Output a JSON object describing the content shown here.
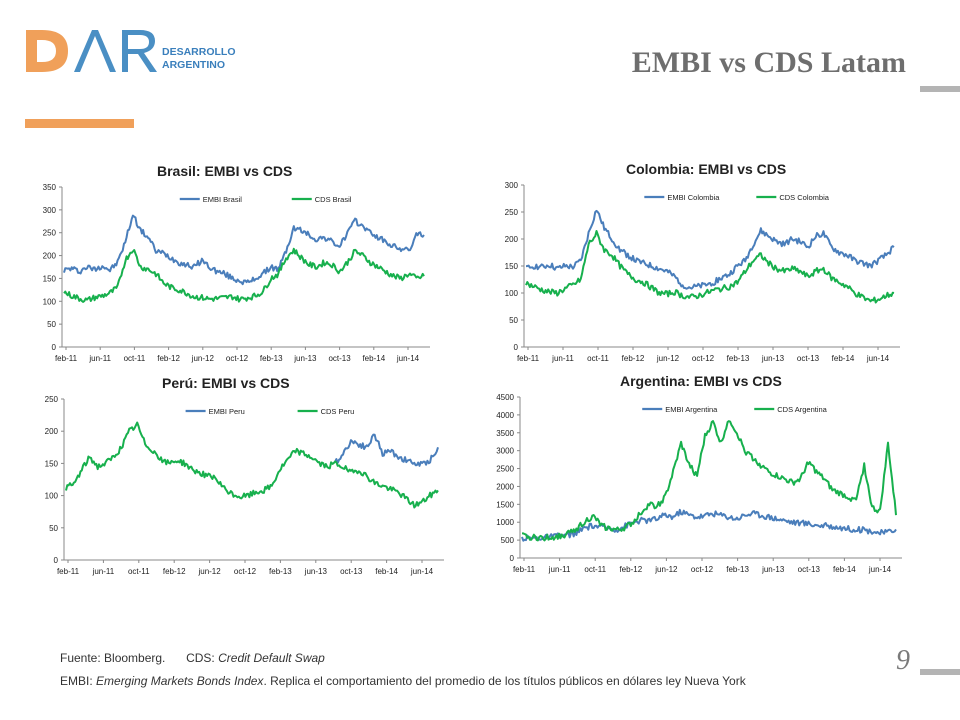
{
  "header": {
    "logo_letters": "DAR",
    "logo_line1": "DESARROLLO",
    "logo_line2": "ARGENTINO",
    "title": "EMBI vs CDS Latam"
  },
  "colors": {
    "embi": "#4a7ebb",
    "cds": "#17b04d",
    "accent": "#f0a05a",
    "title": "#6e6e6e"
  },
  "footer": {
    "source_label": "Fuente: Bloomberg.",
    "cds_label": "CDS: ",
    "cds_def": "Credit Default Swap",
    "embi_label": "EMBI: ",
    "embi_def": "Emerging Markets Bonds Index",
    "embi_desc": ". Replica el comportamiento del promedio de los títulos públicos en dólares ley Nueva York",
    "page_number": "9"
  },
  "chart_data": [
    {
      "type": "line",
      "title": "Brasil: EMBI vs CDS",
      "ylim": [
        0,
        350
      ],
      "yticks": [
        0,
        50,
        100,
        150,
        200,
        250,
        300,
        350
      ],
      "xticks": [
        "feb-11",
        "jun-11",
        "oct-11",
        "feb-12",
        "jun-12",
        "oct-12",
        "feb-13",
        "jun-13",
        "oct-13",
        "feb-14",
        "jun-14"
      ],
      "legend": "top",
      "series": [
        {
          "name": "EMBI Brasil",
          "color": "#4a7ebb",
          "values": [
            168,
            172,
            165,
            175,
            170,
            178,
            168,
            185,
            230,
            290,
            255,
            240,
            210,
            205,
            195,
            185,
            180,
            175,
            190,
            175,
            165,
            160,
            150,
            145,
            140,
            150,
            160,
            175,
            170,
            210,
            260,
            255,
            245,
            235,
            240,
            230,
            220,
            250,
            275,
            265,
            250,
            240,
            230,
            220,
            215,
            210,
            245,
            245
          ]
        },
        {
          "name": "CDS Brasil",
          "color": "#17b04d",
          "values": [
            120,
            112,
            106,
            102,
            108,
            112,
            118,
            130,
            190,
            215,
            175,
            170,
            160,
            140,
            130,
            125,
            118,
            110,
            108,
            105,
            106,
            108,
            110,
            104,
            108,
            112,
            122,
            150,
            160,
            195,
            212,
            195,
            180,
            175,
            185,
            180,
            165,
            185,
            210,
            200,
            185,
            175,
            165,
            155,
            150,
            160,
            150,
            155
          ]
        }
      ]
    },
    {
      "type": "line",
      "title": "Colombia: EMBI vs CDS",
      "ylim": [
        0,
        300
      ],
      "yticks": [
        0,
        50,
        100,
        150,
        200,
        250,
        300
      ],
      "xticks": [
        "feb-11",
        "jun-11",
        "oct-11",
        "feb-12",
        "jun-12",
        "oct-12",
        "feb-13",
        "jun-13",
        "oct-13",
        "feb-14",
        "jun-14"
      ],
      "legend": "top",
      "series": [
        {
          "name": "EMBI Colombia",
          "color": "#4a7ebb",
          "values": [
            145,
            150,
            148,
            152,
            145,
            150,
            148,
            160,
            210,
            255,
            220,
            200,
            180,
            170,
            160,
            155,
            150,
            145,
            140,
            130,
            115,
            110,
            112,
            115,
            120,
            128,
            135,
            150,
            160,
            190,
            215,
            205,
            195,
            190,
            200,
            195,
            185,
            205,
            210,
            185,
            175,
            170,
            160,
            155,
            150,
            160,
            170,
            185
          ]
        },
        {
          "name": "CDS Colombia",
          "color": "#17b04d",
          "values": [
            118,
            112,
            106,
            102,
            100,
            108,
            115,
            125,
            190,
            210,
            180,
            170,
            150,
            135,
            125,
            120,
            110,
            100,
            98,
            102,
            95,
            92,
            95,
            100,
            105,
            108,
            112,
            120,
            140,
            160,
            170,
            155,
            145,
            140,
            145,
            140,
            130,
            140,
            145,
            128,
            120,
            112,
            100,
            92,
            85,
            88,
            95,
            100
          ]
        }
      ]
    },
    {
      "type": "line",
      "title": "Perú: EMBI vs CDS",
      "ylim": [
        0,
        250
      ],
      "yticks": [
        0,
        50,
        100,
        150,
        200,
        250
      ],
      "xticks": [
        "feb-11",
        "jun-11",
        "oct-11",
        "feb-12",
        "jun-12",
        "oct-12",
        "feb-13",
        "jun-13",
        "oct-13",
        "feb-14",
        "jun-14"
      ],
      "legend": "top",
      "series": [
        {
          "name": "EMBI Peru",
          "color": "#4a7ebb",
          "values": [
            null,
            null,
            null,
            null,
            null,
            null,
            null,
            null,
            null,
            null,
            null,
            null,
            null,
            null,
            null,
            null,
            null,
            null,
            null,
            null,
            null,
            null,
            null,
            null,
            null,
            null,
            null,
            null,
            null,
            null,
            null,
            null,
            null,
            null,
            150,
            165,
            185,
            180,
            175,
            195,
            165,
            170,
            160,
            155,
            150,
            148,
            155,
            175
          ]
        },
        {
          "name": "CDS Peru",
          "color": "#17b04d",
          "values": [
            112,
            118,
            140,
            160,
            145,
            150,
            160,
            175,
            200,
            210,
            180,
            170,
            155,
            150,
            155,
            150,
            140,
            135,
            130,
            125,
            110,
            102,
            98,
            100,
            105,
            108,
            115,
            140,
            155,
            170,
            165,
            160,
            150,
            145,
            150,
            145,
            135,
            140,
            130,
            120,
            115,
            110,
            105,
            95,
            85,
            90,
            100,
            108
          ]
        }
      ]
    },
    {
      "type": "line",
      "title": "Argentina: EMBI vs CDS",
      "ylim": [
        0,
        4500
      ],
      "yticks": [
        0,
        500,
        1000,
        1500,
        2000,
        2500,
        3000,
        3500,
        4000,
        4500
      ],
      "xticks": [
        "feb-11",
        "jun-11",
        "oct-11",
        "feb-12",
        "jun-12",
        "oct-12",
        "feb-13",
        "jun-13",
        "oct-13",
        "feb-14",
        "jun-14"
      ],
      "legend": "top",
      "series": [
        {
          "name": "EMBI Argentina",
          "color": "#4a7ebb",
          "values": [
            560,
            550,
            560,
            580,
            600,
            620,
            650,
            720,
            850,
            900,
            860,
            820,
            800,
            900,
            1000,
            1050,
            1050,
            1100,
            1200,
            1150,
            1300,
            1200,
            1150,
            1180,
            1250,
            1200,
            1150,
            1100,
            1200,
            1250,
            1200,
            1150,
            1100,
            1050,
            1000,
            980,
            960,
            920,
            900,
            880,
            850,
            820,
            800,
            780,
            750,
            700,
            720,
            800
          ]
        },
        {
          "name": "CDS Argentina",
          "color": "#17b04d",
          "values": [
            620,
            580,
            560,
            570,
            580,
            620,
            700,
            850,
            1050,
            1150,
            900,
            820,
            780,
            850,
            1000,
            1300,
            1500,
            1450,
            1700,
            2400,
            3200,
            2600,
            2300,
            3400,
            3800,
            3200,
            3900,
            3500,
            3000,
            2800,
            2600,
            2400,
            2300,
            2200,
            2100,
            2200,
            2700,
            2400,
            2200,
            1900,
            1800,
            1700,
            1600,
            2600,
            1400,
            1300,
            3200,
            1200
          ]
        }
      ]
    }
  ]
}
